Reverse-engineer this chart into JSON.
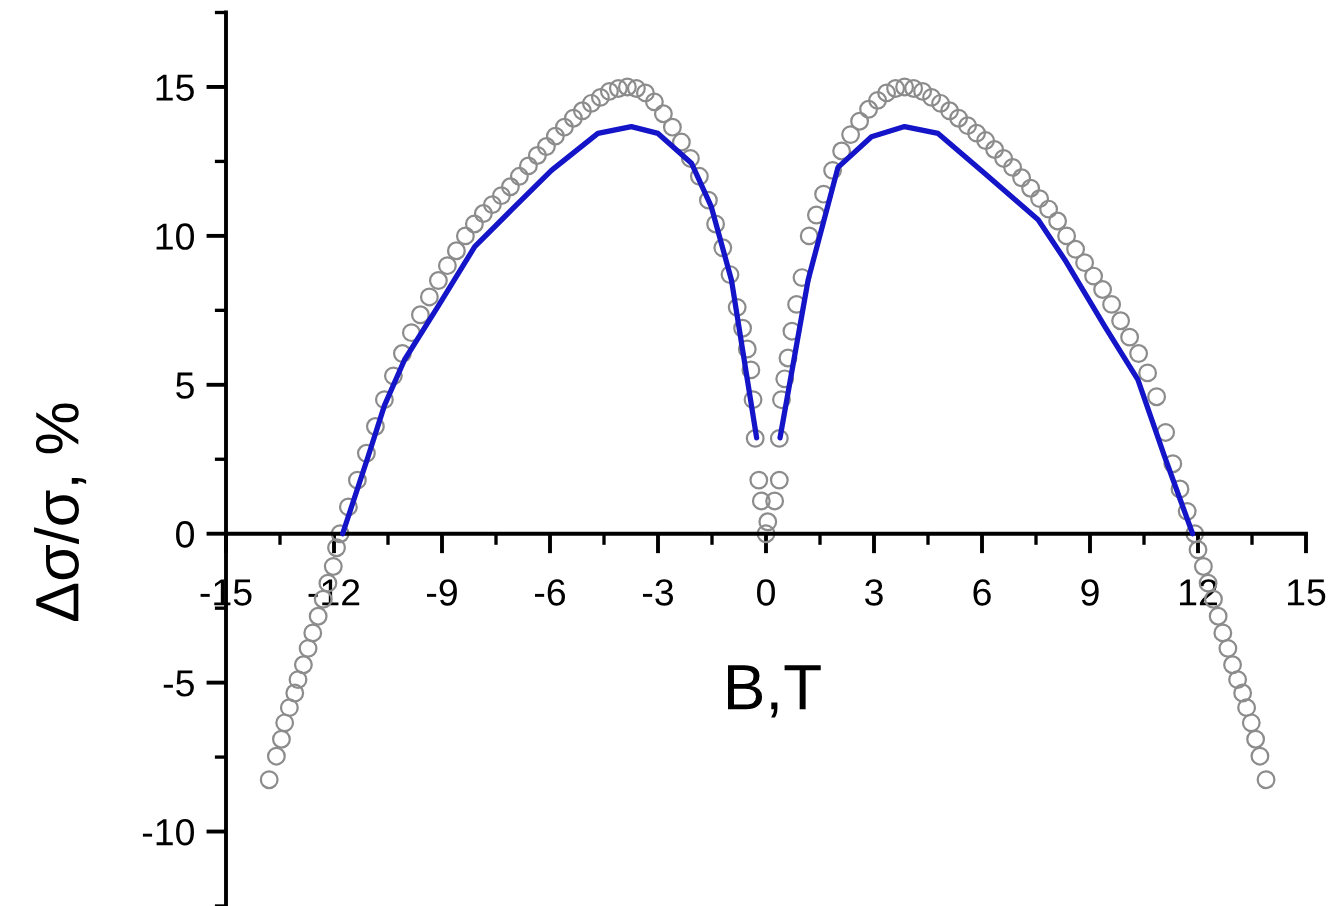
{
  "chart_data": {
    "type": "scatter",
    "xlabel": "B,T",
    "ylabel": "Δσ/σ, %",
    "xlim": [
      -15,
      15
    ],
    "ylim": [
      -12.5,
      17.5
    ],
    "xticks": [
      -15,
      {
        "value": -13.5,
        "label": null
      },
      -12,
      {
        "value": -10.5,
        "label": null
      },
      -9,
      {
        "value": -7.5,
        "label": null
      },
      -6,
      {
        "value": -4.5,
        "label": null
      },
      -3,
      {
        "value": -1.5,
        "label": null
      },
      0,
      {
        "value": 1.5,
        "label": null
      },
      3,
      {
        "value": 4.5,
        "label": null
      },
      6,
      {
        "value": 7.5,
        "label": null
      },
      9,
      {
        "value": 10.5,
        "label": null
      },
      12,
      {
        "value": 13.5,
        "label": null
      },
      15
    ],
    "yticks": [
      {
        "value": -12.5,
        "label": null
      },
      -10,
      {
        "value": -7.5,
        "label": null
      },
      -5,
      {
        "value": -2.5,
        "label": null
      },
      0,
      {
        "value": 2.5,
        "label": null
      },
      5,
      {
        "value": 7.5,
        "label": null
      },
      10,
      {
        "value": 12.5,
        "label": null
      },
      15,
      {
        "value": 17.5,
        "label": null
      }
    ],
    "series": [
      {
        "color": "#8c8c8c",
        "marker": "circle",
        "x": [
          -13.8,
          -13.6,
          -13.46,
          -13.37,
          -13.24,
          -13.09,
          -13.0,
          -12.85,
          -12.72,
          -12.59,
          -12.44,
          -12.3,
          -12.17,
          -12.02,
          -11.93,
          -11.83,
          -11.6,
          -11.35,
          -11.1,
          -10.85,
          -10.6,
          -10.35,
          -10.1,
          -9.85,
          -9.6,
          -9.35,
          -9.1,
          -8.85,
          -8.6,
          -8.35,
          -8.1,
          -7.85,
          -7.6,
          -7.35,
          -7.1,
          -6.85,
          -6.6,
          -6.35,
          -6.1,
          -5.85,
          -5.6,
          -5.35,
          -5.1,
          -4.85,
          -4.6,
          -4.35,
          -4.1,
          -3.85,
          -3.6,
          -3.35,
          -3.1,
          -2.85,
          -2.6,
          -2.35,
          -2.1,
          -1.85,
          -1.6,
          -1.4,
          -1.2,
          -1.0,
          -0.8,
          -0.65,
          -0.52,
          -0.42,
          -0.36,
          -0.3,
          -0.2,
          -0.13,
          0.0,
          0.05,
          0.24,
          0.37,
          0.37,
          0.43,
          0.52,
          0.61,
          0.72,
          0.85,
          1.0,
          1.2,
          1.4,
          1.6,
          1.85,
          2.1,
          2.35,
          2.6,
          2.85,
          3.1,
          3.35,
          3.6,
          3.85,
          4.1,
          4.35,
          4.6,
          4.85,
          5.1,
          5.35,
          5.6,
          5.85,
          6.1,
          6.35,
          6.6,
          6.85,
          7.1,
          7.35,
          7.6,
          7.85,
          8.1,
          8.35,
          8.6,
          8.85,
          9.1,
          9.35,
          9.6,
          9.85,
          10.1,
          10.35,
          10.6,
          10.85,
          11.1,
          11.3,
          11.5,
          11.7,
          11.91,
          12.0,
          12.15,
          12.28,
          12.43,
          12.56,
          12.69,
          12.83,
          12.96,
          13.1,
          13.24,
          13.35,
          13.48,
          13.6,
          13.72,
          13.89
        ],
        "values": [
          -8.26,
          -7.47,
          -6.9,
          -6.35,
          -5.84,
          -5.35,
          -4.9,
          -4.4,
          -3.85,
          -3.33,
          -2.77,
          -2.2,
          -1.66,
          -1.1,
          -0.47,
          0.0,
          0.9,
          1.8,
          2.7,
          3.6,
          4.5,
          5.3,
          6.05,
          6.75,
          7.35,
          7.95,
          8.5,
          9.0,
          9.5,
          10.0,
          10.4,
          10.75,
          11.05,
          11.35,
          11.65,
          12.0,
          12.35,
          12.7,
          13.0,
          13.35,
          13.65,
          13.95,
          14.2,
          14.45,
          14.65,
          14.85,
          14.95,
          15.0,
          14.95,
          14.8,
          14.5,
          14.1,
          13.65,
          13.15,
          12.6,
          12.0,
          11.2,
          10.4,
          9.6,
          8.7,
          7.6,
          6.9,
          6.2,
          5.5,
          4.5,
          3.2,
          1.8,
          1.1,
          0.0,
          0.4,
          1.1,
          1.8,
          3.2,
          4.5,
          5.2,
          5.9,
          6.8,
          7.7,
          8.6,
          10.0,
          10.7,
          11.4,
          12.2,
          12.85,
          13.4,
          13.85,
          14.25,
          14.55,
          14.8,
          14.95,
          15.0,
          14.95,
          14.85,
          14.65,
          14.45,
          14.2,
          13.95,
          13.7,
          13.45,
          13.2,
          12.9,
          12.6,
          12.3,
          11.95,
          11.6,
          11.25,
          10.9,
          10.5,
          10.0,
          9.55,
          9.1,
          8.65,
          8.2,
          7.7,
          7.15,
          6.6,
          6.05,
          5.4,
          4.6,
          3.4,
          2.35,
          1.5,
          0.75,
          0.0,
          -0.54,
          -1.1,
          -1.66,
          -2.2,
          -2.77,
          -3.33,
          -3.85,
          -4.4,
          -4.9,
          -5.35,
          -5.84,
          -6.35,
          -6.9,
          -7.47,
          -8.26
        ]
      },
      {
        "type": "line",
        "color": "#1414c8",
        "x": [
          -11.76,
          -11.05,
          -10.6,
          -10.04,
          -9.11,
          -8.09,
          -7.07,
          -5.96,
          -4.67,
          -3.74,
          -3.0,
          -2.07,
          -1.52,
          -0.96,
          -0.26,
          0.0,
          0.39,
          1.17,
          2.0,
          2.93,
          3.85,
          4.78,
          6.07,
          7.56,
          8.3,
          9.41,
          10.33,
          11.07,
          11.85
        ],
        "values": [
          0.0,
          2.6,
          4.3,
          5.84,
          7.63,
          9.64,
          10.87,
          12.2,
          13.44,
          13.67,
          13.44,
          12.44,
          10.98,
          8.52,
          3.22,
          null,
          3.22,
          8.52,
          12.3,
          13.33,
          13.67,
          13.44,
          12.1,
          10.54,
          9.2,
          6.96,
          5.17,
          2.6,
          0.0
        ]
      }
    ]
  }
}
